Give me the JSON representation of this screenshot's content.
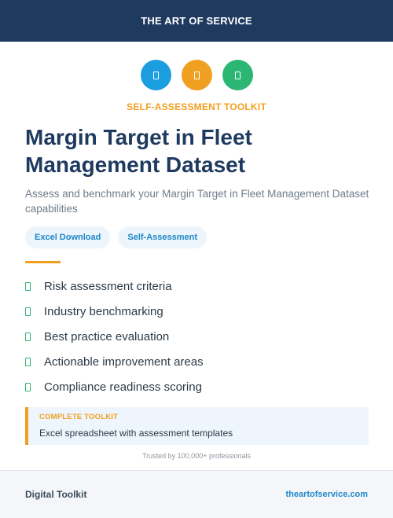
{
  "header": {
    "title": "THE ART OF SERVICE"
  },
  "icons": [
    {
      "name": "spreadsheet-icon",
      "color": "#1a9ee0"
    },
    {
      "name": "checklist-icon",
      "color": "#f0a020"
    },
    {
      "name": "chart-icon",
      "color": "#2bb673"
    }
  ],
  "kicker": "SELF-ASSESSMENT TOOLKIT",
  "title": "Margin Target in Fleet Management Dataset",
  "subtitle": "Assess and benchmark your Margin Target in Fleet Management Dataset capabilities",
  "tags": [
    "Excel Download",
    "Self-Assessment"
  ],
  "features": [
    "Risk assessment criteria",
    "Industry benchmarking",
    "Best practice evaluation",
    "Actionable improvement areas",
    "Compliance readiness scoring"
  ],
  "callout": {
    "label": "COMPLETE TOOLKIT",
    "text": "Excel spreadsheet with assessment templates"
  },
  "trusted": "Trusted by 100,000+ professionals",
  "footer": {
    "brand": "Digital Toolkit",
    "site": "theartofservice.com"
  },
  "colors": {
    "navy": "#1e3a5f",
    "orange": "#f0a020",
    "blue": "#1a9ee0",
    "green": "#2bb673"
  }
}
